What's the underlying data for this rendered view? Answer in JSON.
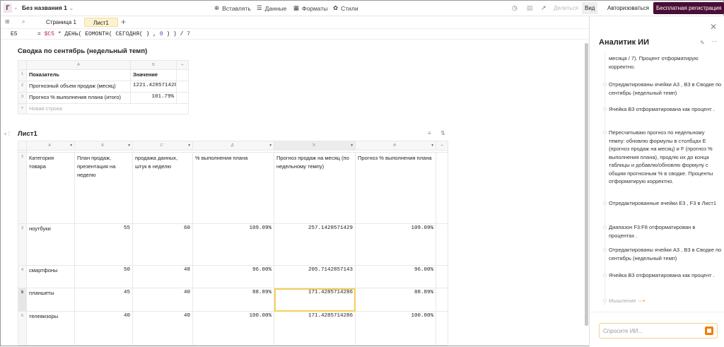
{
  "topbar": {
    "logo": "Г",
    "doc_title": "Без названия 1",
    "menu": [
      {
        "label": "Вставлять",
        "icon": "plus-circle-icon"
      },
      {
        "label": "Данные",
        "icon": "database-icon"
      },
      {
        "label": "Форматы",
        "icon": "format-icon"
      },
      {
        "label": "Стили",
        "icon": "palette-icon"
      }
    ],
    "share": "Делиться",
    "view": "Вид",
    "login": "Авторизоваться",
    "register": "Бесплатная регистрация",
    "accent": "#4a0d35"
  },
  "tabs": [
    {
      "label": "Страница 1"
    },
    {
      "label": "Лист1",
      "active": true
    }
  ],
  "formula_bar": {
    "cell": "E5",
    "parts": [
      "= ",
      "$C5",
      " * ДЕНЬ( EOMONTH( СЕГОДНЯ( ) , ",
      "0",
      " ) ) / ",
      "7"
    ]
  },
  "summary": {
    "title": "Сводка по сентябрь (недельный темп)",
    "col_headers": [
      "A",
      "Б",
      "+"
    ],
    "rows": [
      [
        "Показатель",
        "Значение"
      ],
      [
        "Прогнозный объем продаж (месяц)",
        "1221.428571428"
      ],
      [
        "Прогноз % выполнения плана (итого)",
        "101.79%"
      ]
    ],
    "new_row": "Новая строка"
  },
  "sheet": {
    "title": "Лист1",
    "col_headers": [
      "A",
      "Б",
      "C",
      "Д",
      "Э",
      "Ф",
      "+"
    ],
    "header_row": [
      "Категория товара",
      "План продаж, презентация на неделю",
      "продажа данных, штук в неделю",
      "% выполнения плана",
      "Прогноз продаж на месяц (по недельному темпу)",
      "Прогноз % выполнения плана"
    ],
    "rows": [
      [
        "ноутбуки",
        "55",
        "60",
        "109.09%",
        "257.1428571429",
        "109.09%"
      ],
      [
        "смартфоны",
        "50",
        "48",
        "96.00%",
        "205.7142857143",
        "96.00%"
      ],
      [
        "планшеты",
        "45",
        "40",
        "88.89%",
        "171.4285714286",
        "88.89%"
      ],
      [
        "телевизоры",
        "40",
        "40",
        "100.00%",
        "171.4285714286",
        "100.00%"
      ]
    ],
    "selected_cell": "E5"
  },
  "ai_panel": {
    "title": "Аналитик ИИ",
    "items": [
      "месяца / 7). Процент отформатирую корректно.",
      "Отредактированы ячейки A3 , B3 в Сводке по сентябрь (недельный темп)",
      "Ячейка B3 отформатирована как процент .",
      "Пересчитываю прогноз по недельному темпу: обновлю формулы в столбцах E (прогноз продаж на месяц) и F (прогноз % выполнения плана), продлю их до конца таблицы и добавлю/обновлю формулу с общим прогнозным % в сводке. Проценты отформатирую корректно.",
      "Отредактированные ячейки E3 , F3 в Лист1",
      "Диапазон F3:F8 отформатирован в процентах .",
      "Отредактированы ячейки A3 , B3 в Сводке по сентябрь (недельный темп)",
      "Ячейка B3 отформатирована как процент ."
    ],
    "thinking": "Мышление",
    "input_placeholder": "Спросите ИИ..."
  }
}
